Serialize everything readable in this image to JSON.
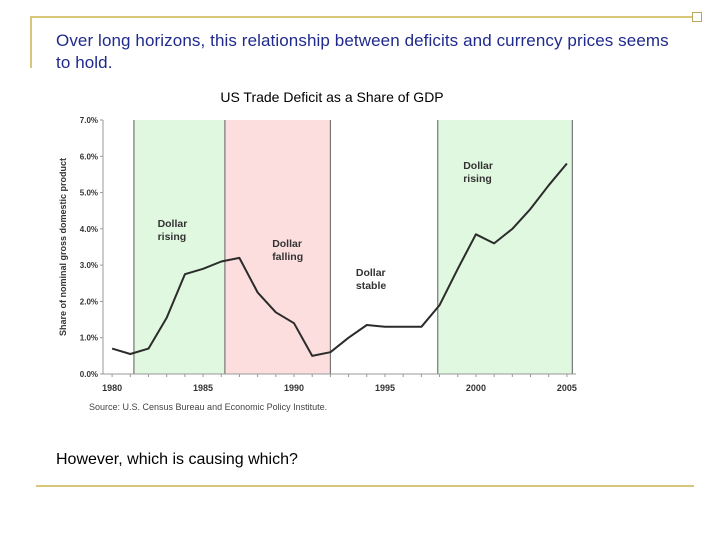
{
  "slide": {
    "heading": "Over long horizons, this relationship between deficits and currency prices seems to hold.",
    "question": "However, which is causing which?"
  },
  "chart_data": {
    "type": "line",
    "title": "US Trade Deficit as a Share of GDP",
    "ylabel": "Share of nominal gross domestic product",
    "xlabel": "",
    "source": "Source: U.S. Census Bureau and Economic Policy Institute.",
    "xlim": [
      1979.5,
      2005.5
    ],
    "ylim": [
      0,
      7
    ],
    "x_ticks": [
      1980,
      1985,
      1990,
      1995,
      2000,
      2005
    ],
    "x_tick_labels": [
      "1980",
      "1985",
      "1990",
      "1995",
      "2000",
      "2005"
    ],
    "y_ticks": [
      0,
      1,
      2,
      3,
      4,
      5,
      6,
      7
    ],
    "y_tick_labels": [
      "0.0%",
      "1.0%",
      "2.0%",
      "3.0%",
      "4.0%",
      "5.0%",
      "6.0%",
      "7.0%"
    ],
    "grid": false,
    "series": [
      {
        "x": [
          1980,
          1981,
          1982,
          1983,
          1984,
          1985,
          1986,
          1987,
          1988,
          1989,
          1990,
          1991,
          1992,
          1993,
          1994,
          1995,
          1996,
          1997,
          1998,
          1999,
          2000,
          2001,
          2002,
          2003,
          2004,
          2005
        ],
        "values": [
          0.7,
          0.55,
          0.7,
          1.55,
          2.75,
          2.9,
          3.1,
          3.2,
          2.25,
          1.7,
          1.4,
          0.5,
          0.6,
          1.0,
          1.35,
          1.3,
          1.3,
          1.3,
          1.9,
          2.9,
          3.85,
          3.6,
          4.0,
          4.55,
          5.2,
          5.8
        ]
      }
    ],
    "regions": [
      {
        "start": 1981.2,
        "end": 1986.2,
        "label_lines": [
          "Dollar",
          "rising"
        ],
        "color": "#e0f7e0",
        "label_at": [
          1982.5,
          4.05
        ]
      },
      {
        "start": 1986.2,
        "end": 1992.0,
        "label_lines": [
          "Dollar",
          "falling"
        ],
        "color": "#fcdede",
        "label_at": [
          1988.8,
          3.5
        ]
      },
      {
        "start": 1992.0,
        "end": 1997.9,
        "label_lines": [
          "Dollar",
          "stable"
        ],
        "color": "#ffffff",
        "label_at": [
          1993.4,
          2.7
        ]
      },
      {
        "start": 1997.9,
        "end": 2005.3,
        "label_lines": [
          "Dollar",
          "rising"
        ],
        "color": "#e0f7e0",
        "label_at": [
          1999.3,
          5.65
        ]
      }
    ]
  }
}
